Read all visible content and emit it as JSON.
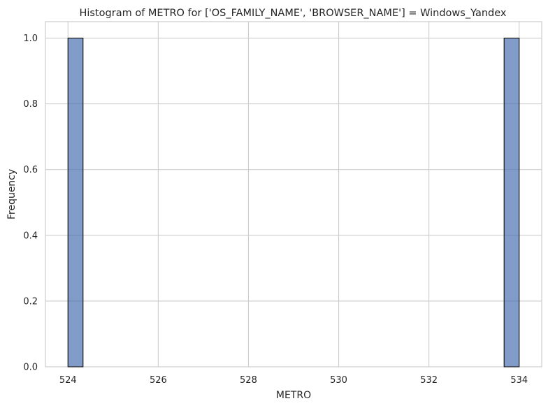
{
  "chart_data": {
    "type": "bar",
    "title": "Histogram of METRO for ['OS_FAMILY_NAME', 'BROWSER_NAME'] = Windows_Yandex",
    "xlabel": "METRO",
    "ylabel": "Frequency",
    "xlim": [
      523.5,
      534.5
    ],
    "ylim": [
      0,
      1.05
    ],
    "x_ticks": [
      "524",
      "526",
      "528",
      "530",
      "532",
      "534"
    ],
    "y_ticks": [
      "0.0",
      "0.2",
      "0.4",
      "0.6",
      "0.8",
      "1.0"
    ],
    "bins": [
      {
        "x_start": 524.0,
        "x_end": 524.333,
        "value": 1
      },
      {
        "x_start": 533.667,
        "x_end": 534.0,
        "value": 1
      }
    ],
    "grid": true,
    "bar_color": "#4c72b0",
    "bar_edge_color": "#1a1a1a"
  }
}
